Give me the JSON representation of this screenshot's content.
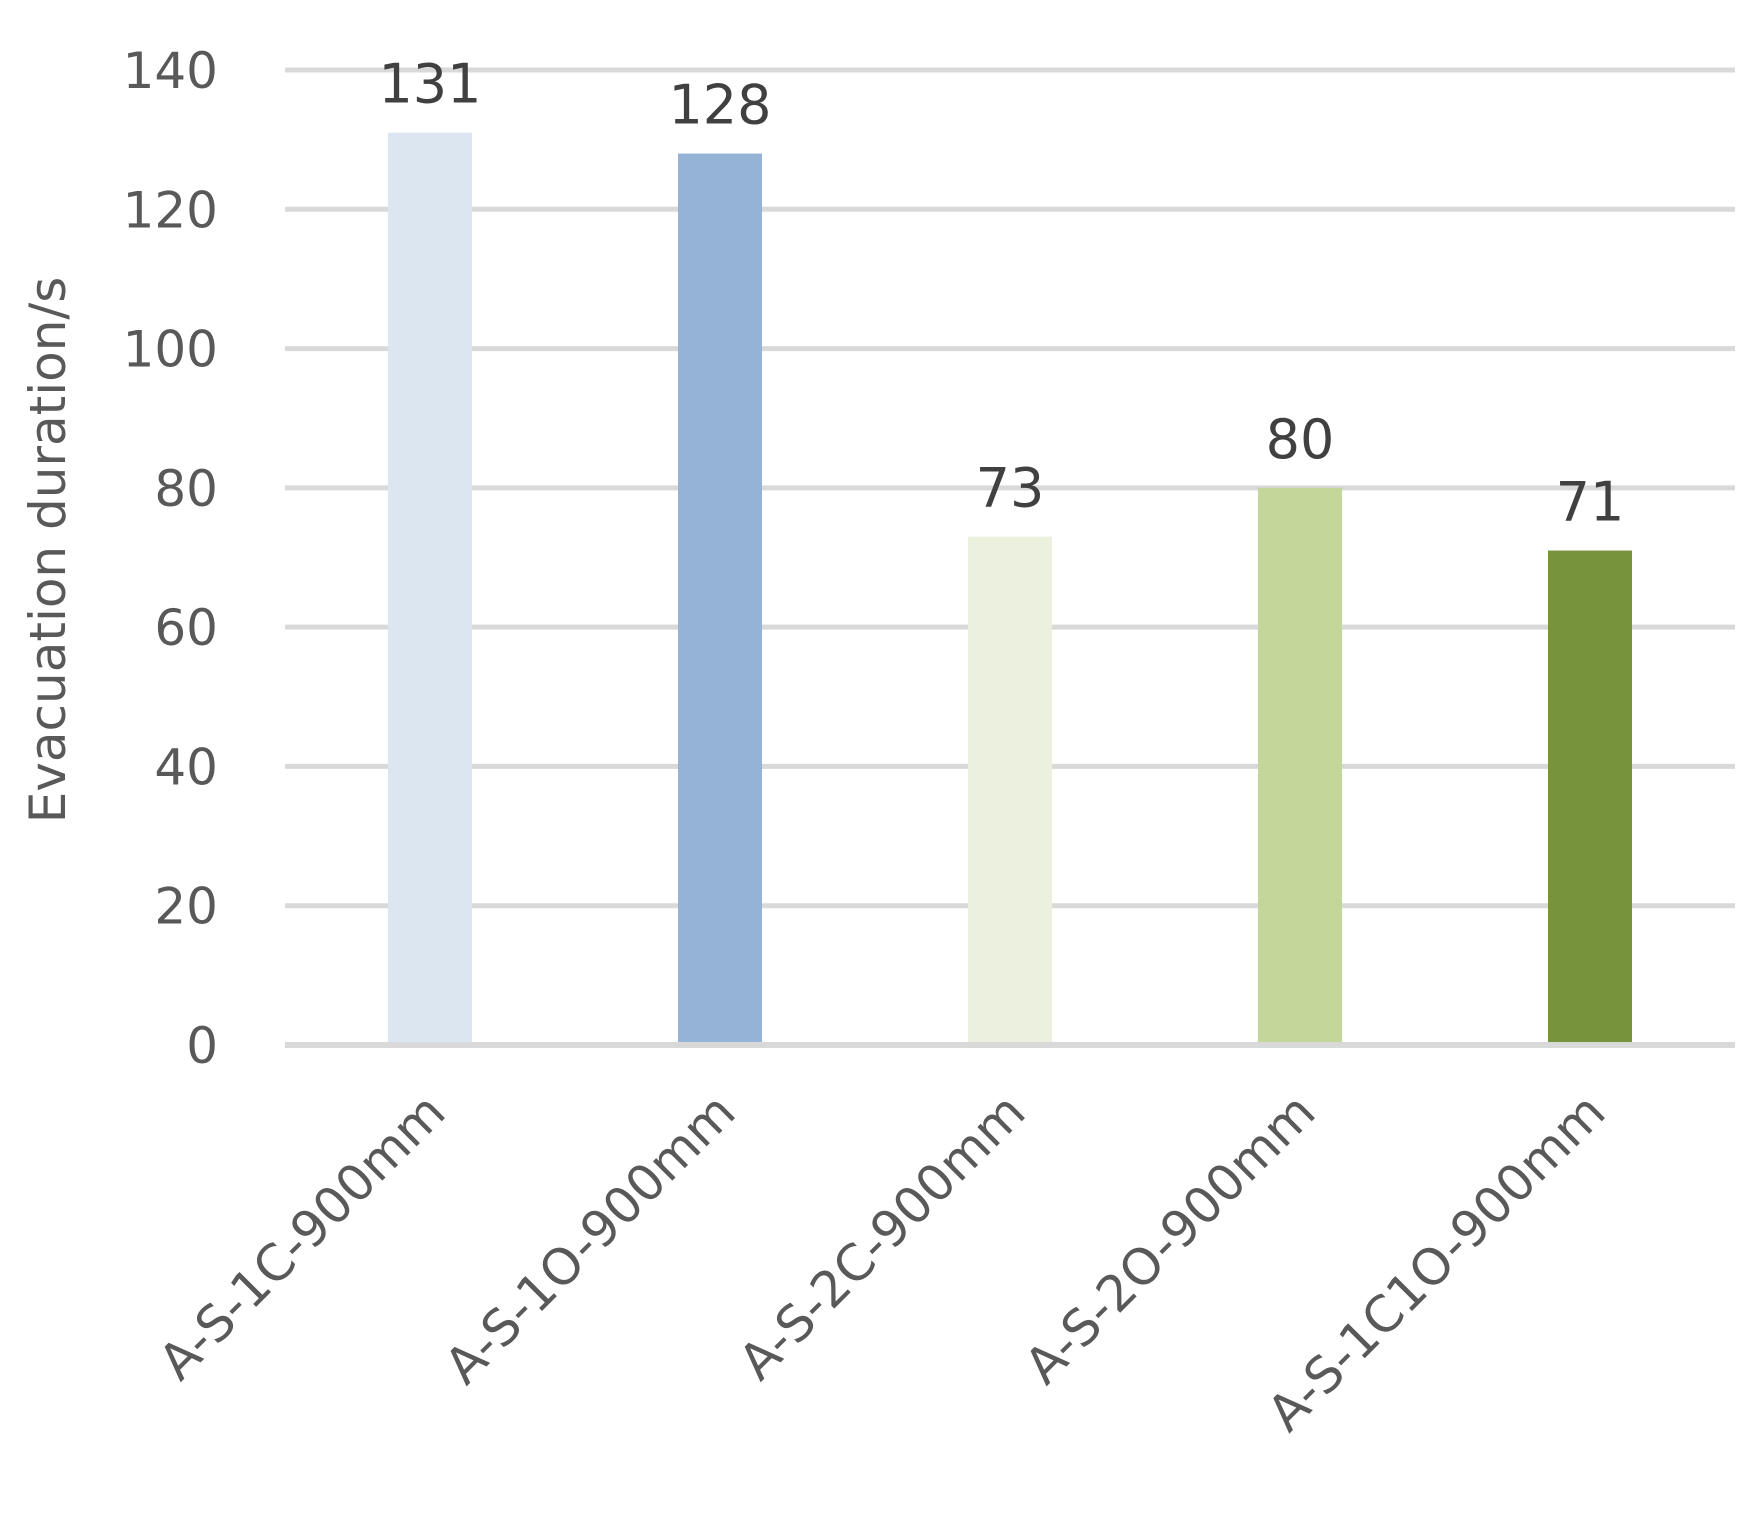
{
  "chart_data": {
    "type": "bar",
    "categories": [
      "A-S-1C-900mm",
      "A-S-1O-900mm",
      "A-S-2C-900mm",
      "A-S-2O-900mm",
      "A-S-1C1O-900mm"
    ],
    "values": [
      131,
      128,
      73,
      80,
      71
    ],
    "colors": [
      "#dce6f1",
      "#95b3d7",
      "#ebf1de",
      "#c4d79b",
      "#77933c"
    ],
    "title": "",
    "xlabel": "",
    "ylabel": "Evacuation duration/s",
    "ylim": [
      0,
      140
    ],
    "yticks": [
      0,
      20,
      40,
      60,
      80,
      100,
      120,
      140
    ],
    "grid": true,
    "gridColor": "#d9d9d9",
    "data_labels": true
  }
}
